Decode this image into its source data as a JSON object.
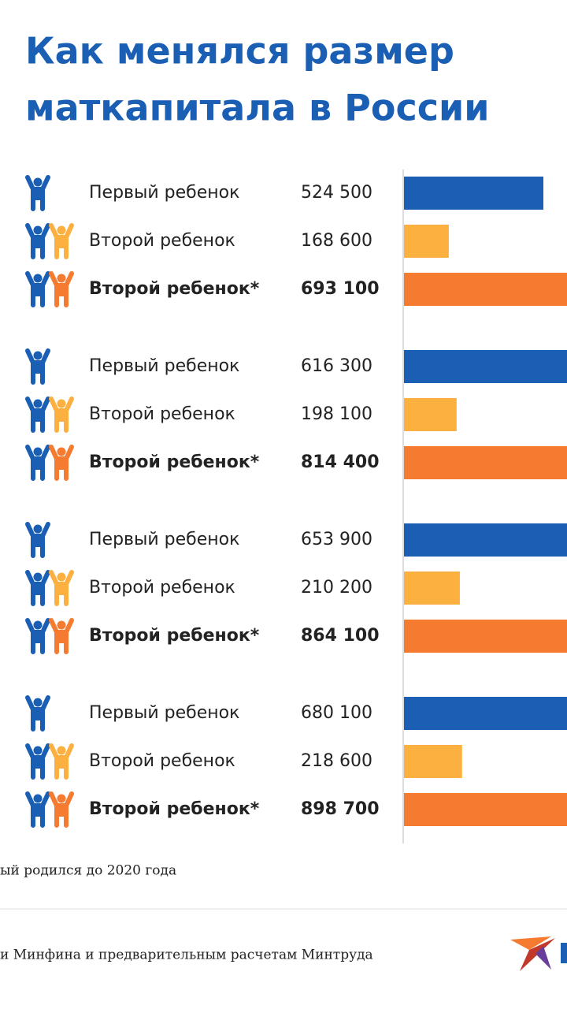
{
  "chart_data": {
    "type": "bar",
    "orientation": "horizontal",
    "title": [
      "Как менялся размер",
      "маткапитала в России"
    ],
    "series": [
      {
        "name": "Первый ребенок",
        "color": "#1a5fb4",
        "values": [
          524500,
          616300,
          653900,
          680100
        ],
        "value_labels": [
          "524 500",
          "616 300",
          "653 900",
          "680 100"
        ]
      },
      {
        "name": "Второй ребенок",
        "color": "#fbb040",
        "values": [
          168600,
          198100,
          210200,
          218600
        ],
        "value_labels": [
          "168 600",
          "198 100",
          "210 200",
          "218 600"
        ]
      },
      {
        "name": "Второй ребенок*",
        "color": "#f47b30",
        "values": [
          693100,
          814400,
          864100,
          898700
        ],
        "value_labels": [
          "693 100",
          "814 400",
          "864 100",
          "898 700"
        ]
      }
    ],
    "footnote": "ый родился до 2020 года",
    "source": "и Минфина и предварительным расчетам Минтруда"
  }
}
